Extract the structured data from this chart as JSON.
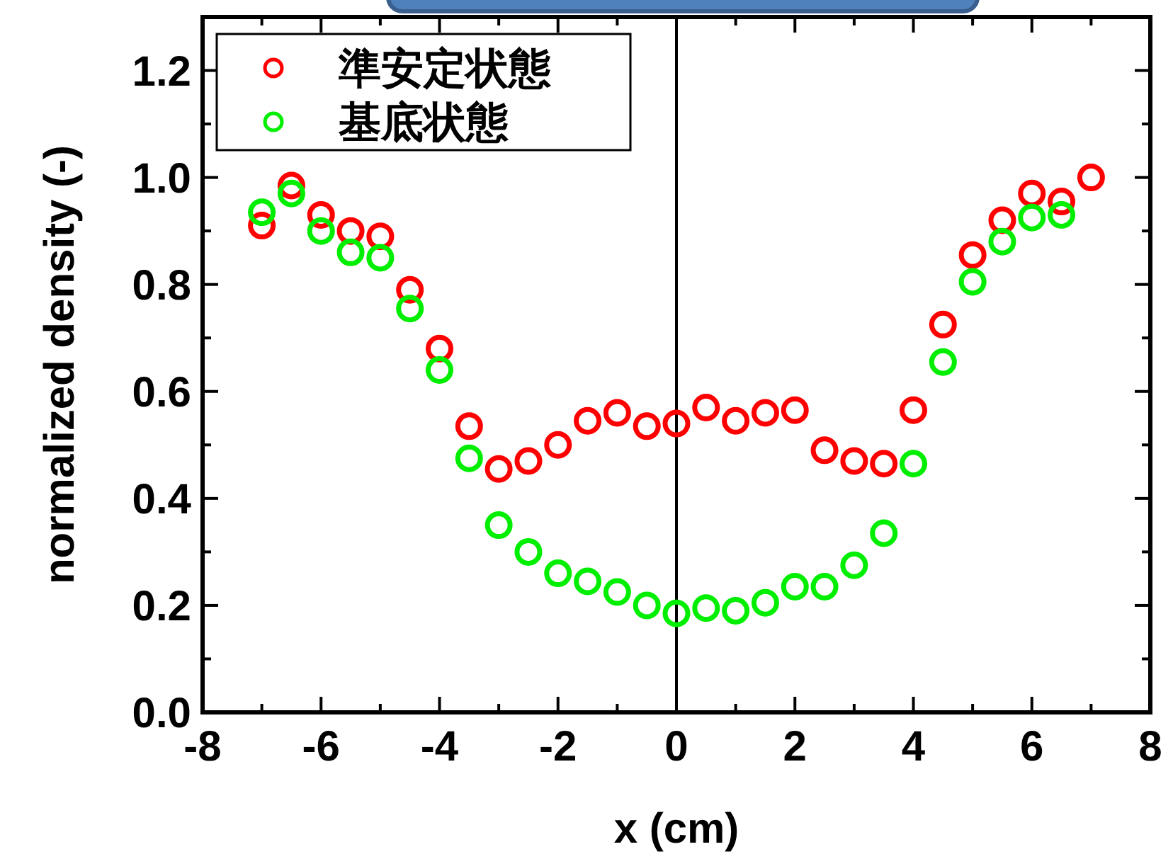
{
  "chart_data": {
    "type": "scatter",
    "xlabel": "x (cm)",
    "ylabel": "normalized density (-)",
    "xlim": [
      -8,
      8
    ],
    "ylim": [
      0,
      1.3
    ],
    "xticks": [
      -8,
      {
        "value": -7,
        "label": null
      },
      -6,
      {
        "value": -5,
        "label": null
      },
      -4,
      {
        "value": -3,
        "label": null
      },
      -2,
      {
        "value": -1,
        "label": null
      },
      0,
      {
        "value": 1,
        "label": null
      },
      2,
      {
        "value": 3,
        "label": null
      },
      4,
      {
        "value": 5,
        "label": null
      },
      6,
      {
        "value": 7,
        "label": null
      },
      8
    ],
    "yticks": [
      {
        "value": 0,
        "label": "0.0"
      },
      {
        "value": 0.1,
        "label": null
      },
      {
        "value": 0.2,
        "label": "0.2"
      },
      {
        "value": 0.3,
        "label": null
      },
      {
        "value": 0.4,
        "label": "0.4"
      },
      {
        "value": 0.5,
        "label": null
      },
      {
        "value": 0.6,
        "label": "0.6"
      },
      {
        "value": 0.7,
        "label": null
      },
      {
        "value": 0.8,
        "label": "0.8"
      },
      {
        "value": 0.9,
        "label": null
      },
      {
        "value": 1.0,
        "label": "1.0"
      },
      {
        "value": 1.1,
        "label": null
      },
      {
        "value": 1.2,
        "label": "1.2"
      }
    ],
    "marker": "circle",
    "legend": "top left",
    "grid": false,
    "ref_lines": [
      {
        "axis": "x",
        "value": 0,
        "color": "#000000"
      }
    ],
    "series": [
      {
        "name": "準安定状態",
        "color": "#ff0000",
        "x": [
          -7,
          -6.5,
          -6,
          -5.5,
          -5,
          -4.5,
          -4,
          -3.5,
          -3,
          -2.5,
          -2,
          -1.5,
          -1,
          -0.5,
          0,
          0.5,
          1,
          1.5,
          2,
          2.5,
          3,
          3.5,
          4,
          4.5,
          5,
          5.5,
          6,
          6.5,
          7
        ],
        "values": [
          0.91,
          0.985,
          0.93,
          0.9,
          0.89,
          0.79,
          0.68,
          0.535,
          0.455,
          0.47,
          0.5,
          0.545,
          0.56,
          0.535,
          0.54,
          0.57,
          0.545,
          0.56,
          0.565,
          0.49,
          0.47,
          0.465,
          0.565,
          0.725,
          0.855,
          0.92,
          0.97,
          0.955,
          1.0
        ]
      },
      {
        "name": "基底状態",
        "color": "#00ee00",
        "x": [
          -7,
          -6.5,
          -6,
          -5.5,
          -5,
          -4.5,
          -4,
          -3.5,
          -3,
          -2.5,
          -2,
          -1.5,
          -1,
          -0.5,
          0,
          0.5,
          1,
          1.5,
          2,
          2.5,
          3,
          3.5,
          4,
          4.5,
          5,
          5.5,
          6,
          6.5
        ],
        "values": [
          0.935,
          0.97,
          0.9,
          0.86,
          0.85,
          0.755,
          0.64,
          0.475,
          0.35,
          0.3,
          0.26,
          0.245,
          0.225,
          0.2,
          0.185,
          0.195,
          0.19,
          0.205,
          0.235,
          0.235,
          0.275,
          0.335,
          0.465,
          0.655,
          0.805,
          0.88,
          0.925,
          0.93
        ]
      }
    ]
  }
}
